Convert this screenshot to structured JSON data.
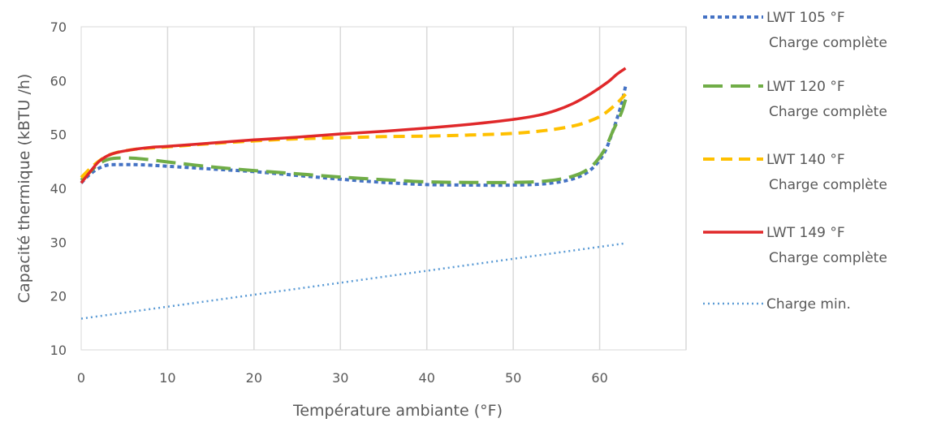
{
  "chart_data": {
    "type": "line",
    "title": "",
    "xlabel": "Température ambiante (°F)",
    "ylabel": "Capacité thermique (kBTU /h)",
    "ylim": [
      10,
      70
    ],
    "xlim": [
      0,
      70
    ],
    "y_ticks": [
      {
        "value": 10,
        "label": "10"
      },
      {
        "value": 20,
        "label": "20"
      },
      {
        "value": 30,
        "label": "30"
      },
      {
        "value": 40,
        "label": "40"
      },
      {
        "value": 50,
        "label": "50"
      },
      {
        "value": 60,
        "label": "60"
      },
      {
        "value": 70,
        "label": "70"
      }
    ],
    "x_ticks": [
      {
        "value": 0,
        "label": "0"
      },
      {
        "value": 10,
        "label": "10"
      },
      {
        "value": 20,
        "label": "20"
      },
      {
        "value": 30,
        "label": "30"
      },
      {
        "value": 40,
        "label": "40"
      },
      {
        "value": 50,
        "label": "50"
      },
      {
        "value": 60,
        "label": "60"
      }
    ],
    "grid": "vertical",
    "legend_position": "right",
    "series": [
      {
        "name": "LWT 105 °F Charge complète",
        "color": "#4472C4",
        "style": "dotted-heavy",
        "points": [
          [
            0,
            41
          ],
          [
            1,
            42.6
          ],
          [
            2,
            43.7
          ],
          [
            3,
            44.3
          ],
          [
            4,
            44.4
          ],
          [
            6,
            44.4
          ],
          [
            8,
            44.3
          ],
          [
            10,
            44.1
          ],
          [
            15,
            43.6
          ],
          [
            20,
            43.1
          ],
          [
            25,
            42.4
          ],
          [
            30,
            41.7
          ],
          [
            35,
            41.1
          ],
          [
            40,
            40.7
          ],
          [
            45,
            40.6
          ],
          [
            50,
            40.6
          ],
          [
            54,
            40.9
          ],
          [
            57,
            41.8
          ],
          [
            59,
            43.5
          ],
          [
            60.5,
            46.5
          ],
          [
            61.5,
            50.5
          ],
          [
            62.5,
            55.5
          ],
          [
            63,
            59
          ]
        ]
      },
      {
        "name": "LWT 120 °F Charge complète",
        "color": "#70AD47",
        "style": "long-dash",
        "points": [
          [
            0,
            41.5
          ],
          [
            1,
            43
          ],
          [
            2,
            44.5
          ],
          [
            3,
            45.3
          ],
          [
            4,
            45.6
          ],
          [
            6,
            45.6
          ],
          [
            8,
            45.3
          ],
          [
            10,
            44.9
          ],
          [
            15,
            44
          ],
          [
            20,
            43.3
          ],
          [
            25,
            42.7
          ],
          [
            30,
            42.1
          ],
          [
            35,
            41.6
          ],
          [
            40,
            41.2
          ],
          [
            45,
            41.1
          ],
          [
            50,
            41.1
          ],
          [
            54,
            41.4
          ],
          [
            57,
            42.3
          ],
          [
            59,
            44
          ],
          [
            60.5,
            47
          ],
          [
            61.5,
            50.5
          ],
          [
            62.5,
            54
          ],
          [
            63,
            56.5
          ]
        ]
      },
      {
        "name": "LWT 140 °F Charge complète",
        "color": "#FFC000",
        "style": "short-dash",
        "points": [
          [
            0,
            42
          ],
          [
            1,
            43.6
          ],
          [
            2,
            45
          ],
          [
            3,
            46
          ],
          [
            4,
            46.6
          ],
          [
            6,
            47.2
          ],
          [
            8,
            47.5
          ],
          [
            10,
            47.7
          ],
          [
            15,
            48.3
          ],
          [
            20,
            48.8
          ],
          [
            25,
            49.2
          ],
          [
            30,
            49.4
          ],
          [
            35,
            49.6
          ],
          [
            40,
            49.7
          ],
          [
            45,
            49.9
          ],
          [
            50,
            50.2
          ],
          [
            54,
            50.8
          ],
          [
            57,
            51.6
          ],
          [
            59,
            52.6
          ],
          [
            60.5,
            53.8
          ],
          [
            62,
            55.8
          ],
          [
            63,
            57.5
          ]
        ]
      },
      {
        "name": "LWT 149 °F Charge complète",
        "color": "#E0282A",
        "style": "solid",
        "points": [
          [
            0,
            41
          ],
          [
            1,
            43
          ],
          [
            2,
            44.9
          ],
          [
            3,
            46
          ],
          [
            4,
            46.6
          ],
          [
            6,
            47.2
          ],
          [
            8,
            47.6
          ],
          [
            10,
            47.8
          ],
          [
            15,
            48.4
          ],
          [
            20,
            49
          ],
          [
            25,
            49.5
          ],
          [
            30,
            50.1
          ],
          [
            35,
            50.6
          ],
          [
            40,
            51.2
          ],
          [
            45,
            51.9
          ],
          [
            50,
            52.8
          ],
          [
            53,
            53.6
          ],
          [
            55,
            54.5
          ],
          [
            57,
            55.8
          ],
          [
            59,
            57.6
          ],
          [
            61,
            59.8
          ],
          [
            62,
            61.2
          ],
          [
            63,
            62.3
          ]
        ]
      },
      {
        "name": "Charge min.",
        "color": "#5B9BD5",
        "style": "dotted-fine",
        "points": [
          [
            0,
            15.8
          ],
          [
            63,
            29.8
          ]
        ]
      }
    ]
  },
  "legend": [
    {
      "line1": "LWT 105 °F",
      "line2": "Charge complète"
    },
    {
      "line1": "LWT 120 °F",
      "line2": "Charge complète"
    },
    {
      "line1": "LWT 140 °F",
      "line2": "Charge complète"
    },
    {
      "line1": "LWT 149 °F",
      "line2": "Charge complète"
    },
    {
      "line1": "Charge min.",
      "line2": ""
    }
  ]
}
